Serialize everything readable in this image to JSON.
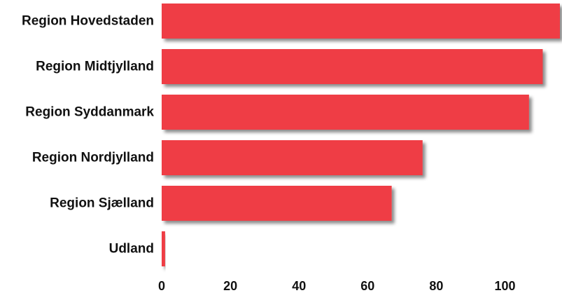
{
  "chart_data": {
    "type": "bar",
    "orientation": "horizontal",
    "categories": [
      "Region Hovedstaden",
      "Region Midtjylland",
      "Region Syddanmark",
      "Region Nordjylland",
      "Region Sjælland",
      "Udland"
    ],
    "values": [
      116,
      111,
      107,
      76,
      67,
      1
    ],
    "title": "",
    "xlabel": "",
    "ylabel": "",
    "xlim": [
      0,
      116
    ],
    "xticks": [
      "0",
      "20",
      "40",
      "60",
      "80",
      "100"
    ],
    "bar_color": "#ef3e45",
    "grid": false,
    "legend": "none"
  }
}
